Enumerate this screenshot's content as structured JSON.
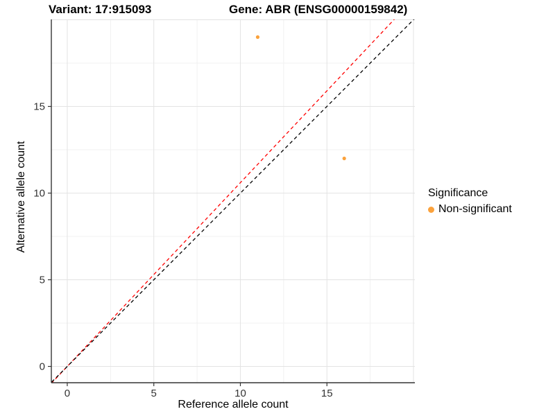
{
  "titles": {
    "left": "Variant: 17:915093",
    "right": "Gene: ABR (ENSG00000159842)"
  },
  "chart_data": {
    "type": "scatter",
    "xlabel": "Reference allele count",
    "ylabel": "Alternative allele count",
    "xlim": [
      -0.92,
      20.08
    ],
    "ylim": [
      -0.94,
      20.02
    ],
    "x_ticks": [
      0,
      5,
      10,
      15
    ],
    "y_ticks": [
      0,
      5,
      10,
      15
    ],
    "x_grid_major": [
      0,
      5,
      10,
      15,
      20
    ],
    "x_grid_minor": [
      2.5,
      7.5,
      12.5,
      17.5
    ],
    "y_grid_major": [
      0,
      5,
      10,
      15,
      20
    ],
    "y_grid_minor": [
      2.5,
      7.5,
      12.5,
      17.5
    ],
    "grid": true,
    "legend_position": "right",
    "series": [
      {
        "name": "Non-significant",
        "color": "#FBA23C",
        "points": [
          {
            "x": 11,
            "y": 19
          },
          {
            "x": 16,
            "y": 12
          }
        ]
      }
    ],
    "reference_lines": [
      {
        "name": "expected-ratio-line",
        "slope": 1.06,
        "intercept": 0,
        "color": "#FF0000",
        "style": "dashed"
      },
      {
        "name": "identity-line",
        "slope": 1.0,
        "intercept": 0,
        "color": "#000000",
        "style": "dashed"
      }
    ],
    "legend": {
      "title": "Significance",
      "items": [
        {
          "label": "Non-significant",
          "color": "#FBA23C"
        }
      ]
    }
  },
  "colors": {
    "grid_major": "#E3E3E3",
    "grid_minor": "#F1F1F1",
    "axis": "#333333",
    "tick_label": "#333333"
  }
}
